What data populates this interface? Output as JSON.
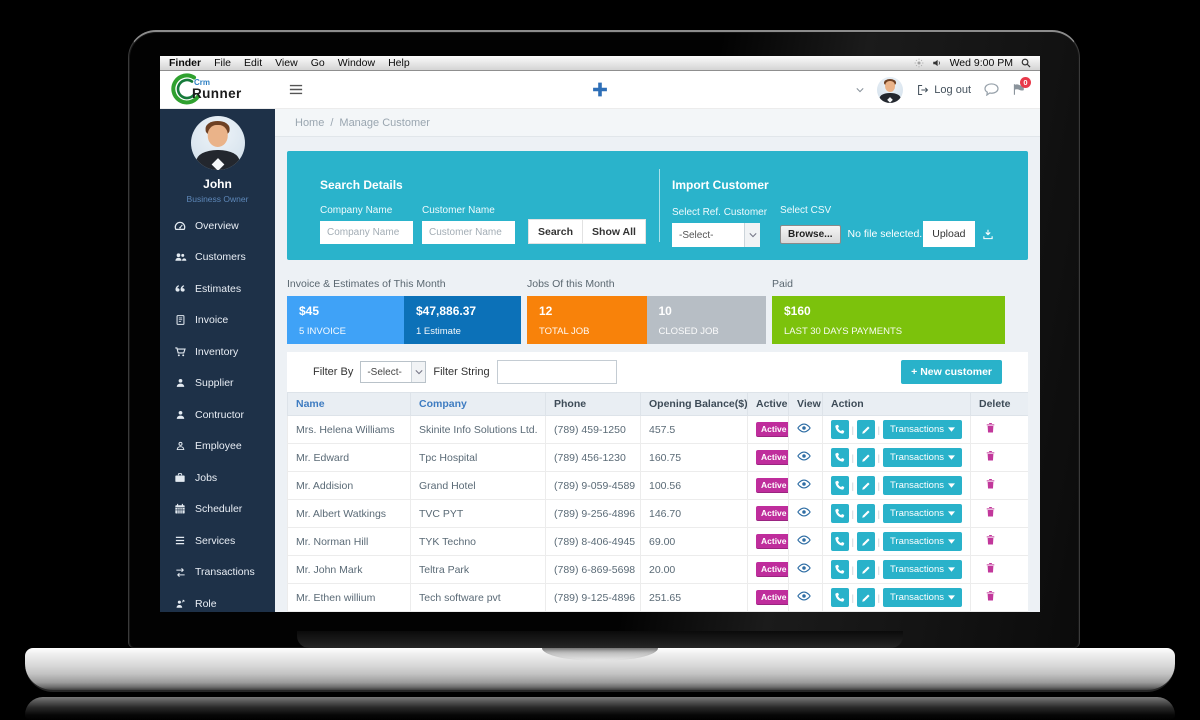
{
  "menubar": {
    "items": [
      "Finder",
      "File",
      "Edit",
      "View",
      "Go",
      "Window",
      "Help"
    ],
    "clock": "Wed 9:00 PM",
    "icons": [
      "brightness-icon",
      "volume-icon",
      "search-icon"
    ]
  },
  "header": {
    "logo_top": "Crm",
    "logo_bottom": "Runner",
    "logout": "Log out",
    "flag_badge": "0",
    "icons": [
      "hamburger-icon",
      "plus-icon",
      "chevron-down-icon",
      "logout-icon",
      "chat-icon",
      "flag-icon"
    ]
  },
  "breadcrumb": {
    "home": "Home",
    "separator": "/",
    "current": "Manage Customer"
  },
  "sidebar": {
    "user_name": "John",
    "user_role": "Business Owner",
    "items": [
      {
        "icon": "tachometer-icon",
        "label": "Overview"
      },
      {
        "icon": "users-icon",
        "label": "Customers"
      },
      {
        "icon": "quote-icon",
        "label": "Estimates"
      },
      {
        "icon": "invoice-icon",
        "label": "Invoice"
      },
      {
        "icon": "cart-icon",
        "label": "Inventory"
      },
      {
        "icon": "user-icon",
        "label": "Supplier"
      },
      {
        "icon": "user-icon",
        "label": "Contructor"
      },
      {
        "icon": "user-outline-icon",
        "label": "Employee"
      },
      {
        "icon": "briefcase-icon",
        "label": "Jobs"
      },
      {
        "icon": "calendar-icon",
        "label": "Scheduler"
      },
      {
        "icon": "list-icon",
        "label": "Services"
      },
      {
        "icon": "exchange-icon",
        "label": "Transactions"
      },
      {
        "icon": "role-icon",
        "label": "Role"
      }
    ]
  },
  "search_panel": {
    "title": "Search Details",
    "company_label": "Company Name",
    "company_placeholder": "Company Name",
    "customer_label": "Customer Name",
    "customer_placeholder": "Customer Name",
    "search_btn": "Search",
    "showall_btn": "Show All",
    "import": {
      "title": "Import Customer",
      "ref_label": "Select Ref. Customer",
      "ref_value": "-Select-",
      "csv_label": "Select CSV",
      "browse_btn": "Browse...",
      "no_file": "No file selected.",
      "upload_btn": "Upload",
      "download_icon": "download-icon"
    }
  },
  "stats": {
    "groups": [
      {
        "title": "Invoice & Estimates of This Month",
        "cards": [
          {
            "value": "$45",
            "label": "5 INVOICE",
            "color": "#3fa2f7"
          },
          {
            "value": "$47,886.37",
            "label": "1 Estimate",
            "color": "#0c71b8"
          }
        ]
      },
      {
        "title": "Jobs Of this Month",
        "cards": [
          {
            "value": "12",
            "label": "TOTAL JOB",
            "color": "#f8820a"
          },
          {
            "value": "10",
            "label": "CLOSED JOB",
            "color": "#b7bec5"
          }
        ]
      },
      {
        "title": "Paid",
        "cards": [
          {
            "value": "$160",
            "label": "LAST 30 DAYS PAYMENTS",
            "color": "#7cc20c"
          }
        ]
      }
    ]
  },
  "filter": {
    "filter_by_label": "Filter By",
    "filter_by_value": "-Select-",
    "filter_string_label": "Filter String",
    "new_customer": "+ New customer"
  },
  "table": {
    "headers": [
      "Name",
      "Company",
      "Phone",
      "Opening Balance($)",
      "Active",
      "View",
      "Action",
      "Delete"
    ],
    "active_label": "Active",
    "transactions_label": "Transactions",
    "action_separator": "|",
    "icons": {
      "view": "eye-icon",
      "call": "phone-icon",
      "edit": "pencil-icon",
      "delete": "trash-icon",
      "caret": "caret-down-icon"
    },
    "rows": [
      {
        "name": "Mrs. Helena Williams",
        "company": "Skinite Info Solutions Ltd.",
        "phone": "(789) 459-1250",
        "balance": "457.5"
      },
      {
        "name": "Mr. Edward",
        "company": "Tpc Hospital",
        "phone": "(789) 456-1230",
        "balance": "160.75"
      },
      {
        "name": "Mr. Addision",
        "company": "Grand Hotel",
        "phone": "(789) 9-059-4589",
        "balance": "100.56"
      },
      {
        "name": "Mr. Albert Watkings",
        "company": "TVC PYT",
        "phone": "(789) 9-256-4896",
        "balance": "146.70"
      },
      {
        "name": "Mr. Norman Hill",
        "company": "TYK Techno",
        "phone": "(789) 8-406-4945",
        "balance": "69.00"
      },
      {
        "name": "Mr. John Mark",
        "company": "Teltra Park",
        "phone": "(789) 6-869-5698",
        "balance": "20.00"
      },
      {
        "name": "Mr. Ethen willium",
        "company": "Tech software pvt",
        "phone": "(789) 9-125-4896",
        "balance": "251.65"
      }
    ]
  },
  "colors": {
    "accent_teal": "#2ab3cb",
    "sidebar_bg": "#1e3148",
    "active_badge": "#bf2d9c",
    "delete_icon": "#c2379b",
    "link_blue": "#3e7cc1"
  }
}
